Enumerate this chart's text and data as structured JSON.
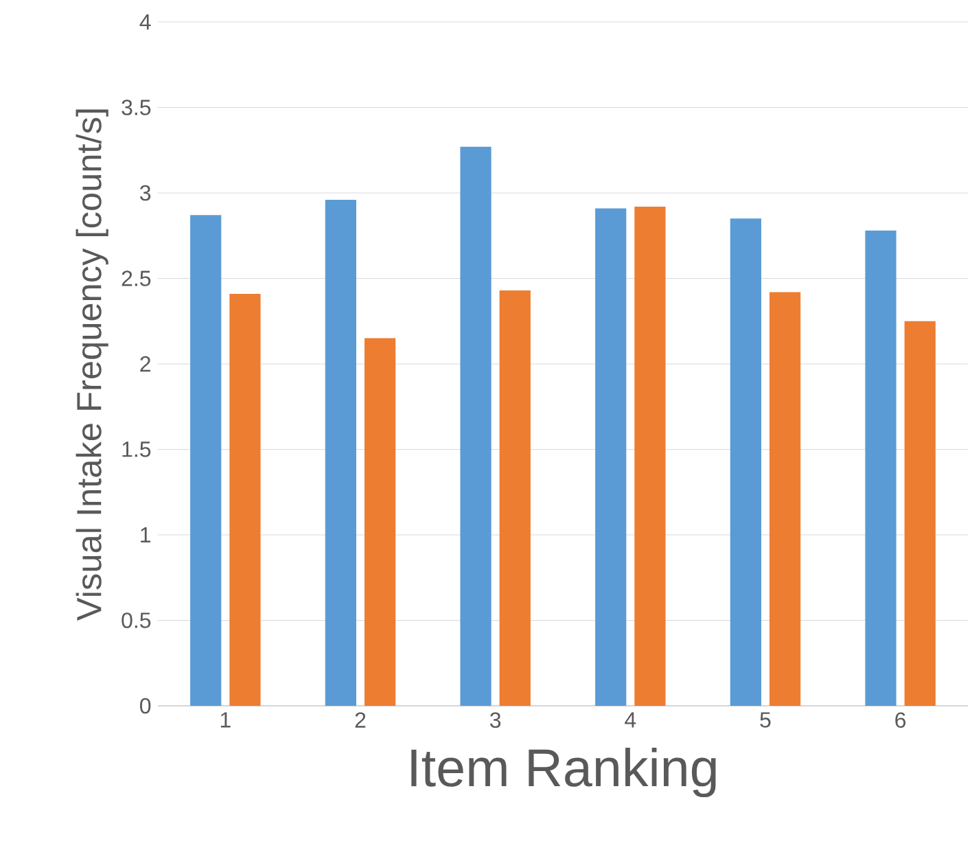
{
  "chart_data": {
    "type": "bar",
    "categories": [
      "1",
      "2",
      "3",
      "4",
      "5",
      "6"
    ],
    "xlabel": "Item Ranking",
    "ylabel": "Visual Intake Frequency [count/s]",
    "series": [
      {
        "color": "#5b9bd5",
        "values": [
          2.87,
          2.96,
          3.27,
          2.91,
          2.85,
          2.78
        ]
      },
      {
        "color": "#ed7d31",
        "values": [
          2.41,
          2.15,
          2.43,
          2.92,
          2.42,
          2.25
        ]
      }
    ],
    "ylim": [
      0,
      4
    ],
    "yticks": [
      0,
      0.5,
      1,
      1.5,
      2,
      2.5,
      3,
      3.5,
      4
    ],
    "grid": "y"
  }
}
